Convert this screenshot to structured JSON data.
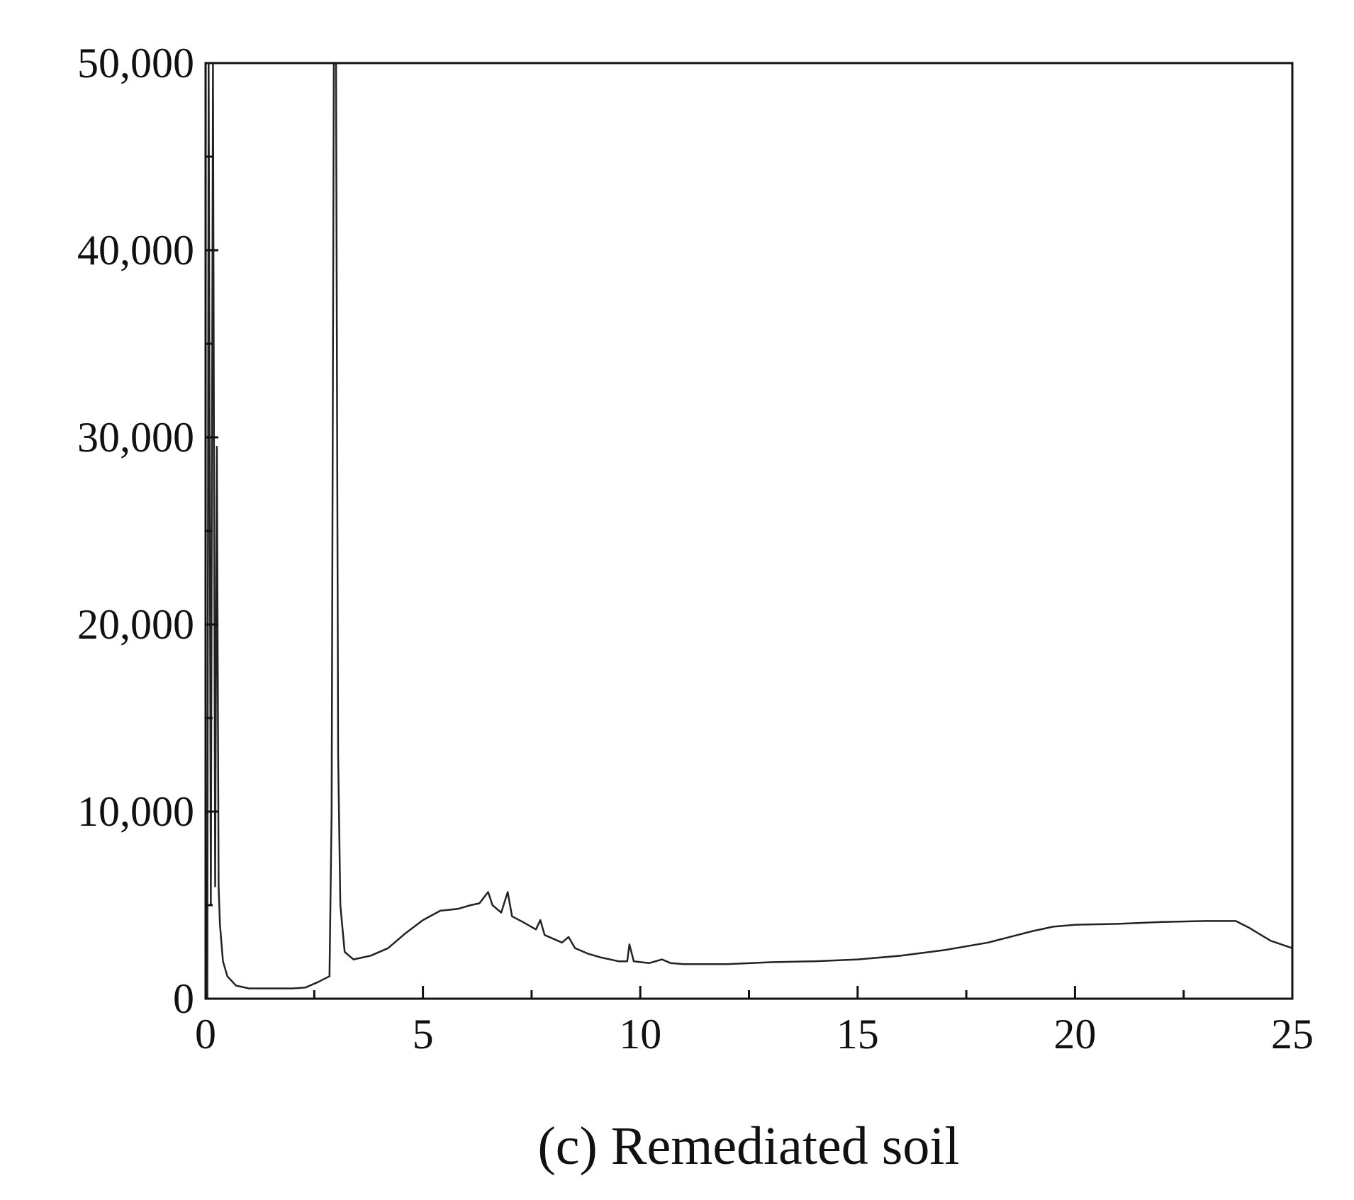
{
  "chart_data": {
    "type": "line",
    "title": "(c) Remediated soil",
    "x": [
      0,
      0.04,
      0.07,
      0.12,
      0.17,
      0.22,
      0.26,
      0.3,
      0.33,
      0.4,
      0.5,
      0.7,
      1.0,
      1.5,
      2.0,
      2.3,
      2.6,
      2.85,
      2.9,
      2.95,
      3.0,
      3.05,
      3.1,
      3.2,
      3.4,
      3.8,
      4.2,
      4.6,
      5.0,
      5.4,
      5.8,
      6.1,
      6.3,
      6.5,
      6.6,
      6.8,
      6.95,
      7.05,
      7.3,
      7.6,
      7.7,
      7.8,
      8.2,
      8.35,
      8.5,
      8.8,
      9.1,
      9.5,
      9.7,
      9.75,
      9.85,
      10.2,
      10.5,
      10.7,
      11,
      12,
      13,
      14,
      15,
      16,
      17,
      18,
      18.5,
      19,
      19.5,
      20,
      21,
      22,
      23,
      23.7,
      24,
      24.5,
      25
    ],
    "values": [
      0,
      0,
      50000,
      5000,
      50000,
      6000,
      29500,
      6000,
      4000,
      2000,
      1200,
      700,
      550,
      550,
      550,
      600,
      900,
      1200,
      10000,
      50000,
      50000,
      13000,
      5000,
      2500,
      2100,
      2300,
      2700,
      3500,
      4200,
      4700,
      4800,
      5000,
      5100,
      5700,
      5000,
      4600,
      5700,
      4400,
      4100,
      3700,
      4200,
      3400,
      3000,
      3300,
      2700,
      2400,
      2200,
      2000,
      2000,
      2900,
      2000,
      1900,
      2100,
      1900,
      1850,
      1850,
      1950,
      2000,
      2100,
      2300,
      2600,
      3000,
      3300,
      3600,
      3850,
      3950,
      4000,
      4100,
      4150,
      4150,
      3800,
      3100,
      2700
    ],
    "color": "#222222",
    "xlim": [
      0,
      25
    ],
    "xticks": [
      0,
      5,
      10,
      15,
      20,
      25
    ],
    "xminorticks": [
      2.5,
      7.5,
      12.5,
      17.5,
      22.5
    ],
    "ylim": [
      0,
      50000
    ],
    "yticks": [
      0,
      {
        "value": 10000,
        "label": "10,000"
      },
      {
        "value": 20000,
        "label": "20,000"
      },
      {
        "value": 30000,
        "label": "30,000"
      },
      {
        "value": 40000,
        "label": "40,000"
      },
      {
        "value": 50000,
        "label": "50,000"
      }
    ],
    "yminorticks": [
      5000,
      15000,
      25000,
      35000,
      45000
    ],
    "grid": false
  }
}
